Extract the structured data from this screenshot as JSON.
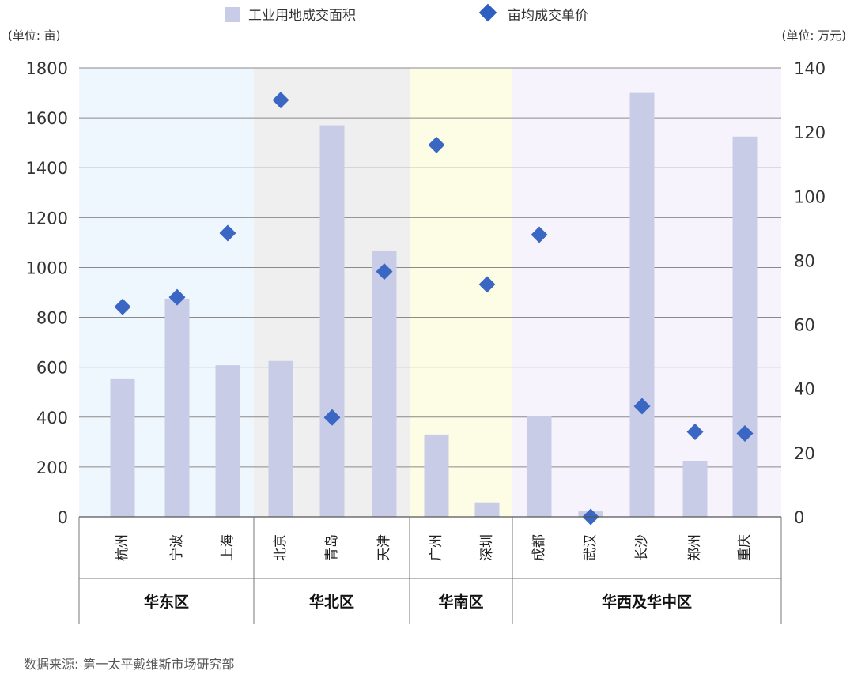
{
  "chart_data": {
    "type": "bar+scatter",
    "title": "",
    "legend": {
      "placement": "top-center",
      "entries": [
        {
          "name": "工业用地成交面积",
          "marker": "square",
          "color": "#c8cce6"
        },
        {
          "name": "亩均成交单价",
          "marker": "diamond",
          "color": "#2f5fc0"
        }
      ]
    },
    "left_axis": {
      "unit_label": "(单位: 亩)",
      "ylim": [
        0,
        1800
      ],
      "ticks": [
        "0",
        "200",
        "400",
        "600",
        "800",
        "1000",
        "1200",
        "1400",
        "1600",
        "1800"
      ]
    },
    "right_axis": {
      "unit_label": "(单位: 万元)",
      "ylim": [
        0,
        140
      ],
      "ticks": [
        "0",
        "20",
        "40",
        "60",
        "80",
        "100",
        "120",
        "140"
      ]
    },
    "grid": true,
    "regions": [
      {
        "name": "华东区",
        "color": "#eef7fd",
        "cities": [
          "杭州",
          "宁波",
          "上海"
        ]
      },
      {
        "name": "华北区",
        "color": "#efefef",
        "cities": [
          "北京",
          "青岛",
          "天津"
        ]
      },
      {
        "name": "华南区",
        "color": "#fdfde6",
        "cities": [
          "广州",
          "深圳"
        ]
      },
      {
        "name": "华西及华中区",
        "color": "#f7f3fc",
        "cities": [
          "成都",
          "武汉",
          "长沙",
          "郑州",
          "重庆"
        ]
      }
    ],
    "categories": [
      "杭州",
      "宁波",
      "上海",
      "北京",
      "青岛",
      "天津",
      "广州",
      "深圳",
      "成都",
      "武汉",
      "长沙",
      "郑州",
      "重庆"
    ],
    "series": [
      {
        "name": "工业用地成交面积",
        "type": "bar",
        "axis": "left",
        "color": "#c8cce6",
        "values": [
          555,
          875,
          608,
          625,
          1570,
          1068,
          330,
          58,
          405,
          22,
          1700,
          225,
          1525
        ]
      },
      {
        "name": "亩均成交单价",
        "type": "scatter",
        "axis": "right",
        "color": "#3a67c4",
        "values": [
          65.5,
          68.5,
          88.5,
          130,
          31,
          76.5,
          116,
          72.5,
          88,
          0,
          34.5,
          26.5,
          26
        ]
      }
    ]
  },
  "source_note": "数据来源: 第一太平戴维斯市场研究部"
}
